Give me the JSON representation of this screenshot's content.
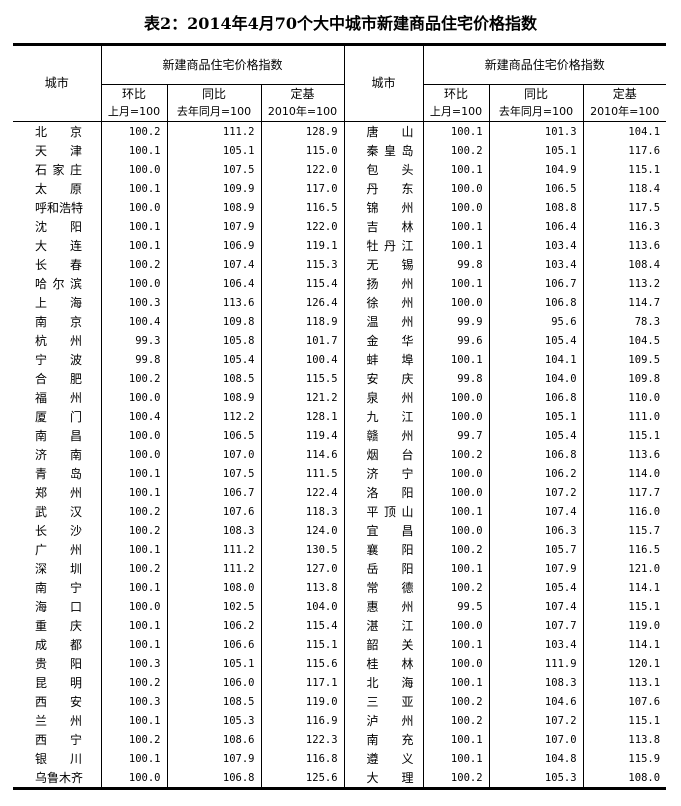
{
  "title": "表2：2014年4月70个大中城市新建商品住宅价格指数",
  "header": {
    "city": "城市",
    "group": "新建商品住宅价格指数",
    "col1": "环比",
    "col1_sub": "上月=100",
    "col2": "同比",
    "col2_sub": "去年同月=100",
    "col3": "定基",
    "col3_sub": "2010年=100"
  },
  "rows": [
    [
      [
        "北京",
        "100.2",
        "111.2",
        "128.9"
      ],
      [
        "唐山",
        "100.1",
        "101.3",
        "104.1"
      ]
    ],
    [
      [
        "天津",
        "100.1",
        "105.1",
        "115.0"
      ],
      [
        "秦皇岛",
        "100.2",
        "105.1",
        "117.6"
      ]
    ],
    [
      [
        "石家庄",
        "100.0",
        "107.5",
        "122.0"
      ],
      [
        "包头",
        "100.1",
        "104.9",
        "115.1"
      ]
    ],
    [
      [
        "太原",
        "100.1",
        "109.9",
        "117.0"
      ],
      [
        "丹东",
        "100.0",
        "106.5",
        "118.4"
      ]
    ],
    [
      [
        "呼和浩特",
        "100.0",
        "108.9",
        "116.5"
      ],
      [
        "锦州",
        "100.0",
        "108.8",
        "117.5"
      ]
    ],
    [
      [
        "沈阳",
        "100.1",
        "107.9",
        "122.0"
      ],
      [
        "吉林",
        "100.1",
        "106.4",
        "116.3"
      ]
    ],
    [
      [
        "大连",
        "100.1",
        "106.9",
        "119.1"
      ],
      [
        "牡丹江",
        "100.1",
        "103.4",
        "113.6"
      ]
    ],
    [
      [
        "长春",
        "100.2",
        "107.4",
        "115.3"
      ],
      [
        "无锡",
        "99.8",
        "103.4",
        "108.4"
      ]
    ],
    [
      [
        "哈尔滨",
        "100.0",
        "106.4",
        "115.4"
      ],
      [
        "扬州",
        "100.1",
        "106.7",
        "113.2"
      ]
    ],
    [
      [
        "上海",
        "100.3",
        "113.6",
        "126.4"
      ],
      [
        "徐州",
        "100.0",
        "106.8",
        "114.7"
      ]
    ],
    [
      [
        "南京",
        "100.4",
        "109.8",
        "118.9"
      ],
      [
        "温州",
        "99.9",
        "95.6",
        "78.3"
      ]
    ],
    [
      [
        "杭州",
        "99.3",
        "105.8",
        "101.7"
      ],
      [
        "金华",
        "99.6",
        "105.4",
        "104.5"
      ]
    ],
    [
      [
        "宁波",
        "99.8",
        "105.4",
        "100.4"
      ],
      [
        "蚌埠",
        "100.1",
        "104.1",
        "109.5"
      ]
    ],
    [
      [
        "合肥",
        "100.2",
        "108.5",
        "115.5"
      ],
      [
        "安庆",
        "99.8",
        "104.0",
        "109.8"
      ]
    ],
    [
      [
        "福州",
        "100.0",
        "108.9",
        "121.2"
      ],
      [
        "泉州",
        "100.0",
        "106.8",
        "110.0"
      ]
    ],
    [
      [
        "厦门",
        "100.4",
        "112.2",
        "128.1"
      ],
      [
        "九江",
        "100.0",
        "105.1",
        "111.0"
      ]
    ],
    [
      [
        "南昌",
        "100.0",
        "106.5",
        "119.4"
      ],
      [
        "赣州",
        "99.7",
        "105.4",
        "115.1"
      ]
    ],
    [
      [
        "济南",
        "100.0",
        "107.0",
        "114.6"
      ],
      [
        "烟台",
        "100.2",
        "106.8",
        "113.6"
      ]
    ],
    [
      [
        "青岛",
        "100.1",
        "107.5",
        "111.5"
      ],
      [
        "济宁",
        "100.0",
        "106.2",
        "114.0"
      ]
    ],
    [
      [
        "郑州",
        "100.1",
        "106.7",
        "122.4"
      ],
      [
        "洛阳",
        "100.0",
        "107.2",
        "117.7"
      ]
    ],
    [
      [
        "武汉",
        "100.2",
        "107.6",
        "118.3"
      ],
      [
        "平顶山",
        "100.1",
        "107.4",
        "116.0"
      ]
    ],
    [
      [
        "长沙",
        "100.2",
        "108.3",
        "124.0"
      ],
      [
        "宜昌",
        "100.0",
        "106.3",
        "115.7"
      ]
    ],
    [
      [
        "广州",
        "100.1",
        "111.2",
        "130.5"
      ],
      [
        "襄阳",
        "100.2",
        "105.7",
        "116.5"
      ]
    ],
    [
      [
        "深圳",
        "100.2",
        "111.2",
        "127.0"
      ],
      [
        "岳阳",
        "100.1",
        "107.9",
        "121.0"
      ]
    ],
    [
      [
        "南宁",
        "100.1",
        "108.0",
        "113.8"
      ],
      [
        "常德",
        "100.2",
        "105.4",
        "114.1"
      ]
    ],
    [
      [
        "海口",
        "100.0",
        "102.5",
        "104.0"
      ],
      [
        "惠州",
        "99.5",
        "107.4",
        "115.1"
      ]
    ],
    [
      [
        "重庆",
        "100.1",
        "106.2",
        "115.4"
      ],
      [
        "湛江",
        "100.0",
        "107.7",
        "119.0"
      ]
    ],
    [
      [
        "成都",
        "100.1",
        "106.6",
        "115.1"
      ],
      [
        "韶关",
        "100.1",
        "103.4",
        "114.1"
      ]
    ],
    [
      [
        "贵阳",
        "100.3",
        "105.1",
        "115.6"
      ],
      [
        "桂林",
        "100.0",
        "111.9",
        "120.1"
      ]
    ],
    [
      [
        "昆明",
        "100.2",
        "106.0",
        "117.1"
      ],
      [
        "北海",
        "100.1",
        "108.3",
        "113.1"
      ]
    ],
    [
      [
        "西安",
        "100.3",
        "108.5",
        "119.0"
      ],
      [
        "三亚",
        "100.2",
        "104.6",
        "107.6"
      ]
    ],
    [
      [
        "兰州",
        "100.1",
        "105.3",
        "116.9"
      ],
      [
        "泸州",
        "100.2",
        "107.2",
        "115.1"
      ]
    ],
    [
      [
        "西宁",
        "100.2",
        "108.6",
        "122.3"
      ],
      [
        "南充",
        "100.1",
        "107.0",
        "113.8"
      ]
    ],
    [
      [
        "银川",
        "100.1",
        "107.9",
        "116.8"
      ],
      [
        "遵义",
        "100.1",
        "104.8",
        "115.9"
      ]
    ],
    [
      [
        "乌鲁木齐",
        "100.0",
        "106.8",
        "125.6"
      ],
      [
        "大理",
        "100.2",
        "105.3",
        "108.0"
      ]
    ]
  ]
}
